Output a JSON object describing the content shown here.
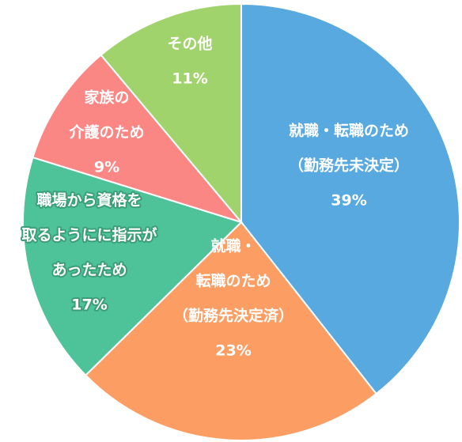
{
  "chart_data": {
    "type": "pie",
    "slices": [
      {
        "label_lines": [
          "就職・転職のため",
          "（勤務先未決定）",
          "39%"
        ],
        "value": 39,
        "color": "#57a9df"
      },
      {
        "label_lines": [
          "就職・",
          "転職のため",
          "（勤務先決定済）",
          "23%"
        ],
        "value": 23,
        "color": "#fc9e63"
      },
      {
        "label_lines": [
          "職場から資格を",
          "取るようにに指示が",
          "あったため",
          "17%"
        ],
        "value": 17,
        "color": "#4ec39a",
        "outline": "#3a9e78"
      },
      {
        "label_lines": [
          "家族の",
          "介護のため",
          "9%"
        ],
        "value": 9,
        "color": "#fb8785"
      },
      {
        "label_lines": [
          "その他",
          "11%"
        ],
        "value": 11,
        "color": "#a0d36b"
      }
    ]
  }
}
